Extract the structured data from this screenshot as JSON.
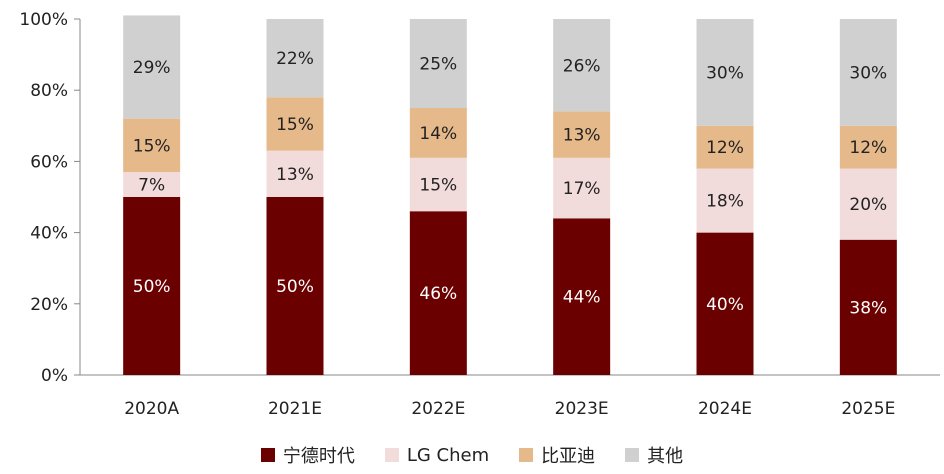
{
  "chart_data": {
    "type": "bar",
    "stacked": true,
    "categories": [
      "2020A",
      "2021E",
      "2022E",
      "2023E",
      "2024E",
      "2025E"
    ],
    "series": [
      {
        "name": "宁德时代",
        "color": "#6b0000",
        "label_color": "#ffffff",
        "values": [
          50,
          50,
          46,
          44,
          40,
          38
        ]
      },
      {
        "name": "LG Chem",
        "color": "#f2dcdb",
        "label_color": "#222222",
        "values": [
          7,
          13,
          15,
          17,
          18,
          20
        ]
      },
      {
        "name": "比亚迪",
        "color": "#e6b98a",
        "label_color": "#222222",
        "values": [
          15,
          15,
          14,
          13,
          12,
          12
        ]
      },
      {
        "name": "其他",
        "color": "#d0d0d0",
        "label_color": "#222222",
        "values": [
          29,
          22,
          25,
          26,
          30,
          30
        ]
      }
    ],
    "value_suffix": "%",
    "ylim": [
      0,
      100
    ],
    "yticks": [
      0,
      20,
      40,
      60,
      80,
      100
    ],
    "ytick_labels": [
      "0%",
      "20%",
      "40%",
      "60%",
      "80%",
      "100%"
    ],
    "legend_position": "bottom-center",
    "grid": false
  }
}
